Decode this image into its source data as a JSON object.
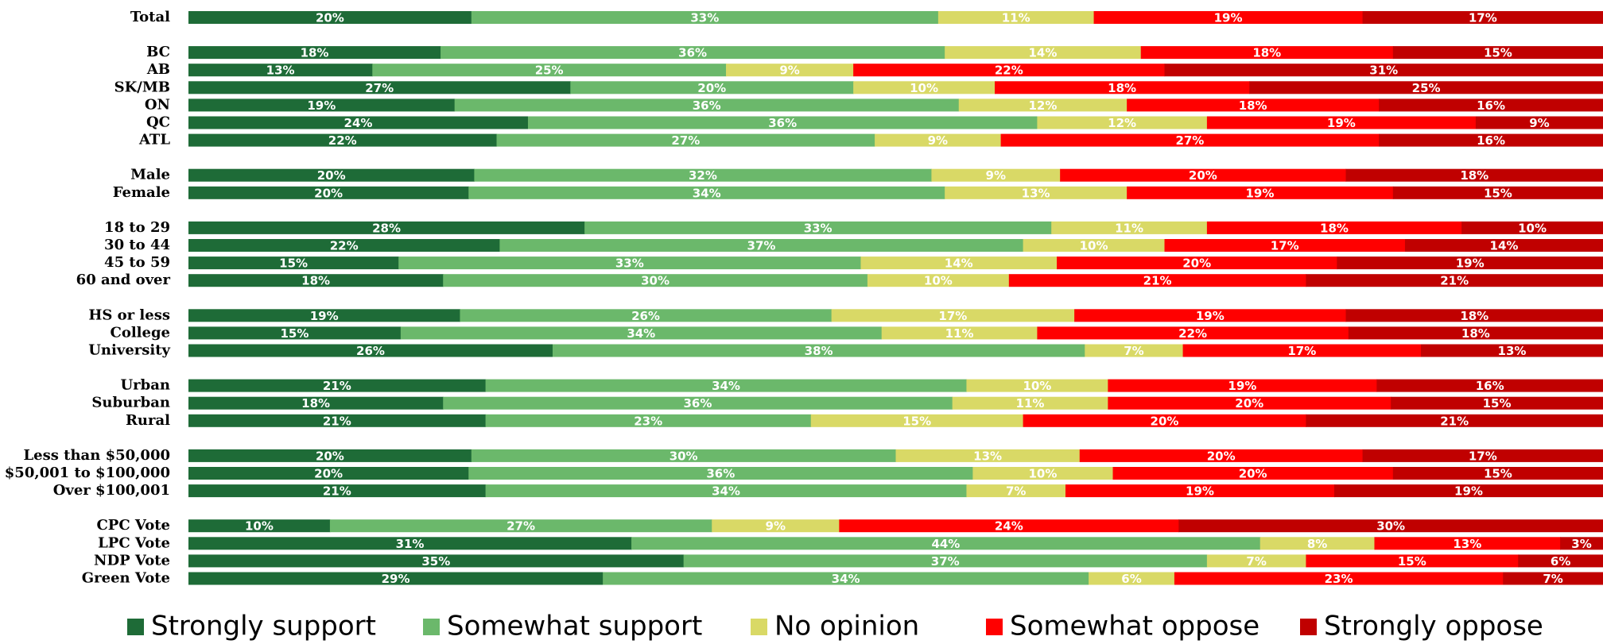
{
  "chart_data": {
    "type": "bar",
    "orientation": "horizontal",
    "stacked": true,
    "percent_stacked": true,
    "grid": false,
    "legend_position": "bottom",
    "title": "",
    "xlabel": "",
    "ylabel": "",
    "xlim": [
      0,
      100
    ],
    "colors": [
      "#1e6b37",
      "#6bb86b",
      "#d9d966",
      "#ff0000",
      "#c00000"
    ],
    "categories": [
      "Total",
      "BC",
      "AB",
      "SK/MB",
      "ON",
      "QC",
      "ATL",
      "Male",
      "Female",
      "18 to 29",
      "30 to 44",
      "45 to 59",
      "60 and over",
      "HS or less",
      "College",
      "University",
      "Urban",
      "Suburban",
      "Rural",
      "Less than $50,000",
      "$50,001 to $100,000",
      "Over $100,001",
      "CPC Vote",
      "LPC Vote",
      "NDP Vote",
      "Green Vote"
    ],
    "groups": [
      1,
      6,
      2,
      4,
      3,
      3,
      3,
      4
    ],
    "series": [
      {
        "name": "Strongly support",
        "values": [
          20,
          18,
          13,
          27,
          19,
          24,
          22,
          20,
          20,
          28,
          22,
          15,
          18,
          19,
          15,
          26,
          21,
          18,
          21,
          20,
          20,
          21,
          10,
          31,
          35,
          29
        ],
        "labels": [
          "20%",
          "18%",
          "13%",
          "27%",
          "19%",
          "24%",
          "22%",
          "20%",
          "20%",
          "28%",
          "22%",
          "15%",
          "18%",
          "19%",
          "15%",
          "26%",
          "21%",
          "18%",
          "21%",
          "20%",
          "20%",
          "21%",
          "10%",
          "31%",
          "35%",
          "29%"
        ]
      },
      {
        "name": "Somewhat support",
        "values": [
          33,
          36,
          25,
          20,
          36,
          36,
          27,
          32,
          34,
          33,
          37,
          33,
          30,
          26,
          34,
          38,
          34,
          36,
          23,
          30,
          36,
          34,
          27,
          44,
          37,
          34
        ],
        "labels": [
          "33%",
          "36%",
          "25%",
          "20%",
          "36%",
          "36%",
          "27%",
          "32%",
          "34%",
          "33%",
          "37%",
          "33%",
          "30%",
          "26%",
          "34%",
          "38%",
          "34%",
          "36%",
          "23%",
          "30%",
          "36%",
          "34%",
          "27%",
          "44%",
          "37%",
          "34%"
        ]
      },
      {
        "name": "No opinion",
        "values": [
          11,
          14,
          9,
          10,
          12,
          12,
          9,
          9,
          13,
          11,
          10,
          14,
          10,
          17,
          11,
          7,
          10,
          11,
          15,
          13,
          10,
          7,
          9,
          8,
          7,
          6
        ],
        "labels": [
          "11%",
          "14%",
          "9%",
          "10%",
          "12%",
          "12%",
          "9%",
          "9%",
          "13%",
          "11%",
          "10%",
          "14%",
          "10%",
          "17%",
          "11%",
          "7%",
          "10%",
          "11%",
          "15%",
          "13%",
          "10%",
          "7%",
          "9%",
          "8%",
          "7%",
          "6%"
        ]
      },
      {
        "name": "Somewhat oppose",
        "values": [
          19,
          18,
          22,
          18,
          18,
          19,
          27,
          20,
          19,
          18,
          17,
          20,
          21,
          19,
          22,
          17,
          19,
          20,
          20,
          20,
          20,
          19,
          24,
          13,
          15,
          23
        ],
        "labels": [
          "19%",
          "18%",
          "22%",
          "18%",
          "18%",
          "19%",
          "27%",
          "20%",
          "19%",
          "18%",
          "17%",
          "20%",
          "21%",
          "19%",
          "22%",
          "17%",
          "19%",
          "20%",
          "20%",
          "20%",
          "20%",
          "19%",
          "24%",
          "13%",
          "15%",
          "23%"
        ]
      },
      {
        "name": "Strongly oppose",
        "values": [
          17,
          15,
          31,
          25,
          16,
          9,
          16,
          18,
          15,
          10,
          14,
          19,
          21,
          18,
          18,
          13,
          16,
          15,
          21,
          17,
          15,
          19,
          30,
          3,
          6,
          7
        ],
        "labels": [
          "17%",
          "15%",
          "31%",
          "25%",
          "16%",
          "9%",
          "16%",
          "18%",
          "15%",
          "10%",
          "14%",
          "19%",
          "21%",
          "18%",
          "18%",
          "13%",
          "16%",
          "15%",
          "21%",
          "17%",
          "15%",
          "19%",
          "30%",
          "3%",
          "6%",
          "7%"
        ]
      }
    ]
  }
}
